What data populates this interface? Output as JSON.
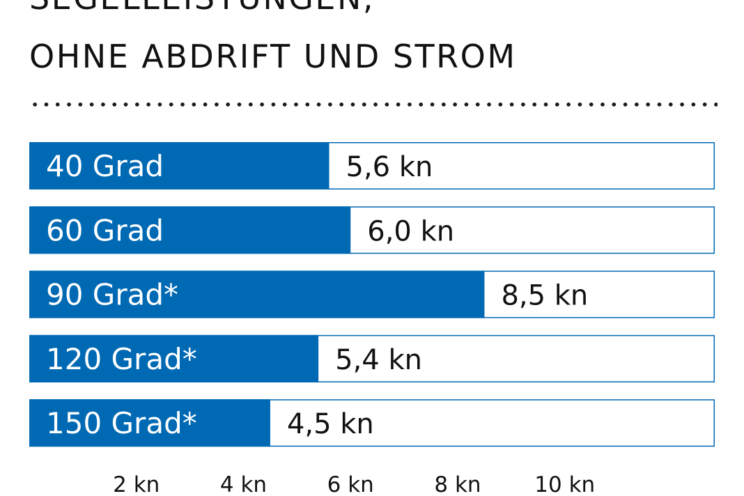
{
  "title_line_1": "SEGELLEISTUNGEN,",
  "title_line_2": "OHNE ABDRIFT UND STROM",
  "colors": {
    "bar": "#0069b4",
    "frame": "#0069b4",
    "text": "#111111"
  },
  "chart_data": {
    "type": "bar",
    "orientation": "horizontal",
    "categories": [
      "40 Grad",
      "60 Grad",
      "90 Grad*",
      "120 Grad*",
      "150 Grad*"
    ],
    "values": [
      5.6,
      6.0,
      8.5,
      5.4,
      4.5
    ],
    "value_labels": [
      "5,6 kn",
      "6,0 kn",
      "8,5 kn",
      "5,4 kn",
      "4,5 kn"
    ],
    "x_ticks": [
      {
        "value": 2,
        "label": "2 kn"
      },
      {
        "value": 4,
        "label": "4 kn"
      },
      {
        "value": 6,
        "label": "6 kn"
      },
      {
        "value": 8,
        "label": "8 kn"
      },
      {
        "value": 10,
        "label": "10 kn"
      }
    ],
    "xlim": [
      0,
      12.8
    ],
    "grid": false,
    "legend": "none"
  }
}
